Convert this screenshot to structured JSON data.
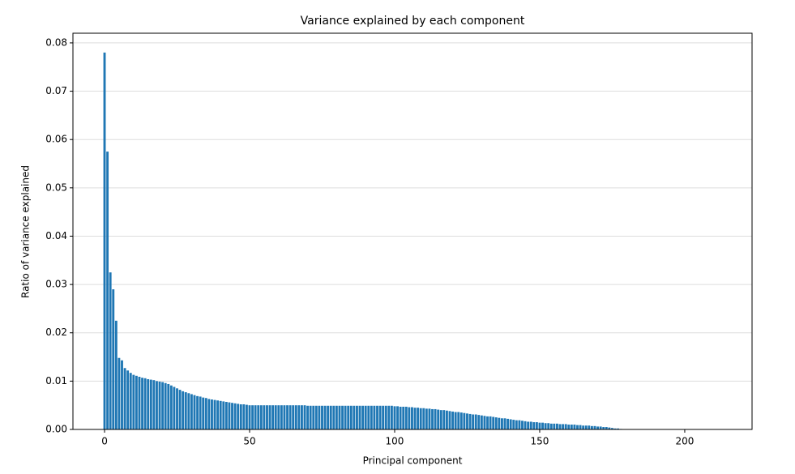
{
  "chart_data": {
    "type": "bar",
    "title": "Variance explained by each component",
    "x_label": "Principal component",
    "y_label": "Ratio of variance explained",
    "color": "#1f77b4",
    "grid": "y",
    "xlim": [
      -10.9,
      223.2
    ],
    "xticks": [
      0,
      50,
      100,
      150,
      200
    ],
    "ylim": [
      0,
      0.082
    ],
    "yticks": [
      {
        "value": 0,
        "label": "0.00"
      },
      {
        "value": 0.01,
        "label": "0.01"
      },
      {
        "value": 0.02,
        "label": "0.02"
      },
      {
        "value": 0.03,
        "label": "0.03"
      },
      {
        "value": 0.04,
        "label": "0.04"
      },
      {
        "value": 0.05,
        "label": "0.05"
      },
      {
        "value": 0.06,
        "label": "0.06"
      },
      {
        "value": 0.07,
        "label": "0.07"
      },
      {
        "value": 0.08,
        "label": "0.08"
      }
    ],
    "x": [
      0,
      1,
      2,
      3,
      4,
      5,
      6,
      7,
      8,
      9,
      10,
      11,
      12,
      13,
      14,
      15,
      16,
      17,
      18,
      19,
      20,
      21,
      22,
      23,
      24,
      25,
      26,
      27,
      28,
      29,
      30,
      31,
      32,
      33,
      34,
      35,
      36,
      37,
      38,
      39,
      40,
      41,
      42,
      43,
      44,
      45,
      46,
      47,
      48,
      49,
      50,
      51,
      52,
      53,
      54,
      55,
      56,
      57,
      58,
      59,
      60,
      61,
      62,
      63,
      64,
      65,
      66,
      67,
      68,
      69,
      70,
      71,
      72,
      73,
      74,
      75,
      76,
      77,
      78,
      79,
      80,
      81,
      82,
      83,
      84,
      85,
      86,
      87,
      88,
      89,
      90,
      91,
      92,
      93,
      94,
      95,
      96,
      97,
      98,
      99,
      100,
      101,
      102,
      103,
      104,
      105,
      106,
      107,
      108,
      109,
      110,
      111,
      112,
      113,
      114,
      115,
      116,
      117,
      118,
      119,
      120,
      121,
      122,
      123,
      124,
      125,
      126,
      127,
      128,
      129,
      130,
      131,
      132,
      133,
      134,
      135,
      136,
      137,
      138,
      139,
      140,
      141,
      142,
      143,
      144,
      145,
      146,
      147,
      148,
      149,
      150,
      151,
      152,
      153,
      154,
      155,
      156,
      157,
      158,
      159,
      160,
      161,
      162,
      163,
      164,
      165,
      166,
      167,
      168,
      169,
      170,
      171,
      172,
      173,
      174,
      175,
      176,
      177,
      178
    ],
    "values": [
      0.078,
      0.0575,
      0.0325,
      0.029,
      0.0225,
      0.0148,
      0.0143,
      0.0127,
      0.0122,
      0.0117,
      0.0113,
      0.0111,
      0.0109,
      0.0107,
      0.0106,
      0.0104,
      0.0103,
      0.0102,
      0.01,
      0.0099,
      0.0098,
      0.0096,
      0.0094,
      0.0091,
      0.0088,
      0.0085,
      0.0082,
      0.0079,
      0.0077,
      0.0075,
      0.0073,
      0.0071,
      0.0069,
      0.0068,
      0.0066,
      0.0065,
      0.0063,
      0.0062,
      0.0061,
      0.006,
      0.0059,
      0.0058,
      0.0057,
      0.0056,
      0.0055,
      0.0054,
      0.0053,
      0.0052,
      0.0052,
      0.0051,
      0.005,
      0.005,
      0.005,
      0.005,
      0.005,
      0.005,
      0.005,
      0.005,
      0.005,
      0.005,
      0.005,
      0.005,
      0.005,
      0.005,
      0.005,
      0.005,
      0.005,
      0.005,
      0.005,
      0.005,
      0.0049,
      0.0049,
      0.0049,
      0.0049,
      0.0049,
      0.0049,
      0.0049,
      0.0049,
      0.0049,
      0.0049,
      0.0049,
      0.0049,
      0.0049,
      0.0049,
      0.0049,
      0.0049,
      0.0049,
      0.0049,
      0.0049,
      0.0049,
      0.0049,
      0.0049,
      0.0049,
      0.0049,
      0.0049,
      0.0049,
      0.0049,
      0.0049,
      0.0049,
      0.0049,
      0.0048,
      0.0048,
      0.0047,
      0.0047,
      0.0047,
      0.0046,
      0.0046,
      0.0045,
      0.0045,
      0.0044,
      0.0044,
      0.0043,
      0.0043,
      0.0042,
      0.0042,
      0.0041,
      0.004,
      0.004,
      0.0039,
      0.0038,
      0.0037,
      0.0036,
      0.0036,
      0.0035,
      0.0034,
      0.0033,
      0.0032,
      0.0031,
      0.0031,
      0.003,
      0.0029,
      0.0028,
      0.0027,
      0.0027,
      0.0026,
      0.0025,
      0.0024,
      0.0023,
      0.0023,
      0.0022,
      0.0021,
      0.002,
      0.0019,
      0.0019,
      0.0018,
      0.0017,
      0.0016,
      0.0016,
      0.0015,
      0.0015,
      0.0014,
      0.0014,
      0.0013,
      0.0013,
      0.0012,
      0.0012,
      0.0012,
      0.0011,
      0.0011,
      0.0011,
      0.001,
      0.001,
      0.001,
      0.0009,
      0.0009,
      0.0008,
      0.0008,
      0.0008,
      0.0007,
      0.0007,
      0.0006,
      0.0006,
      0.0005,
      0.0005,
      0.0004,
      0.0003,
      0.0002,
      0.0002,
      0.0001
    ]
  }
}
